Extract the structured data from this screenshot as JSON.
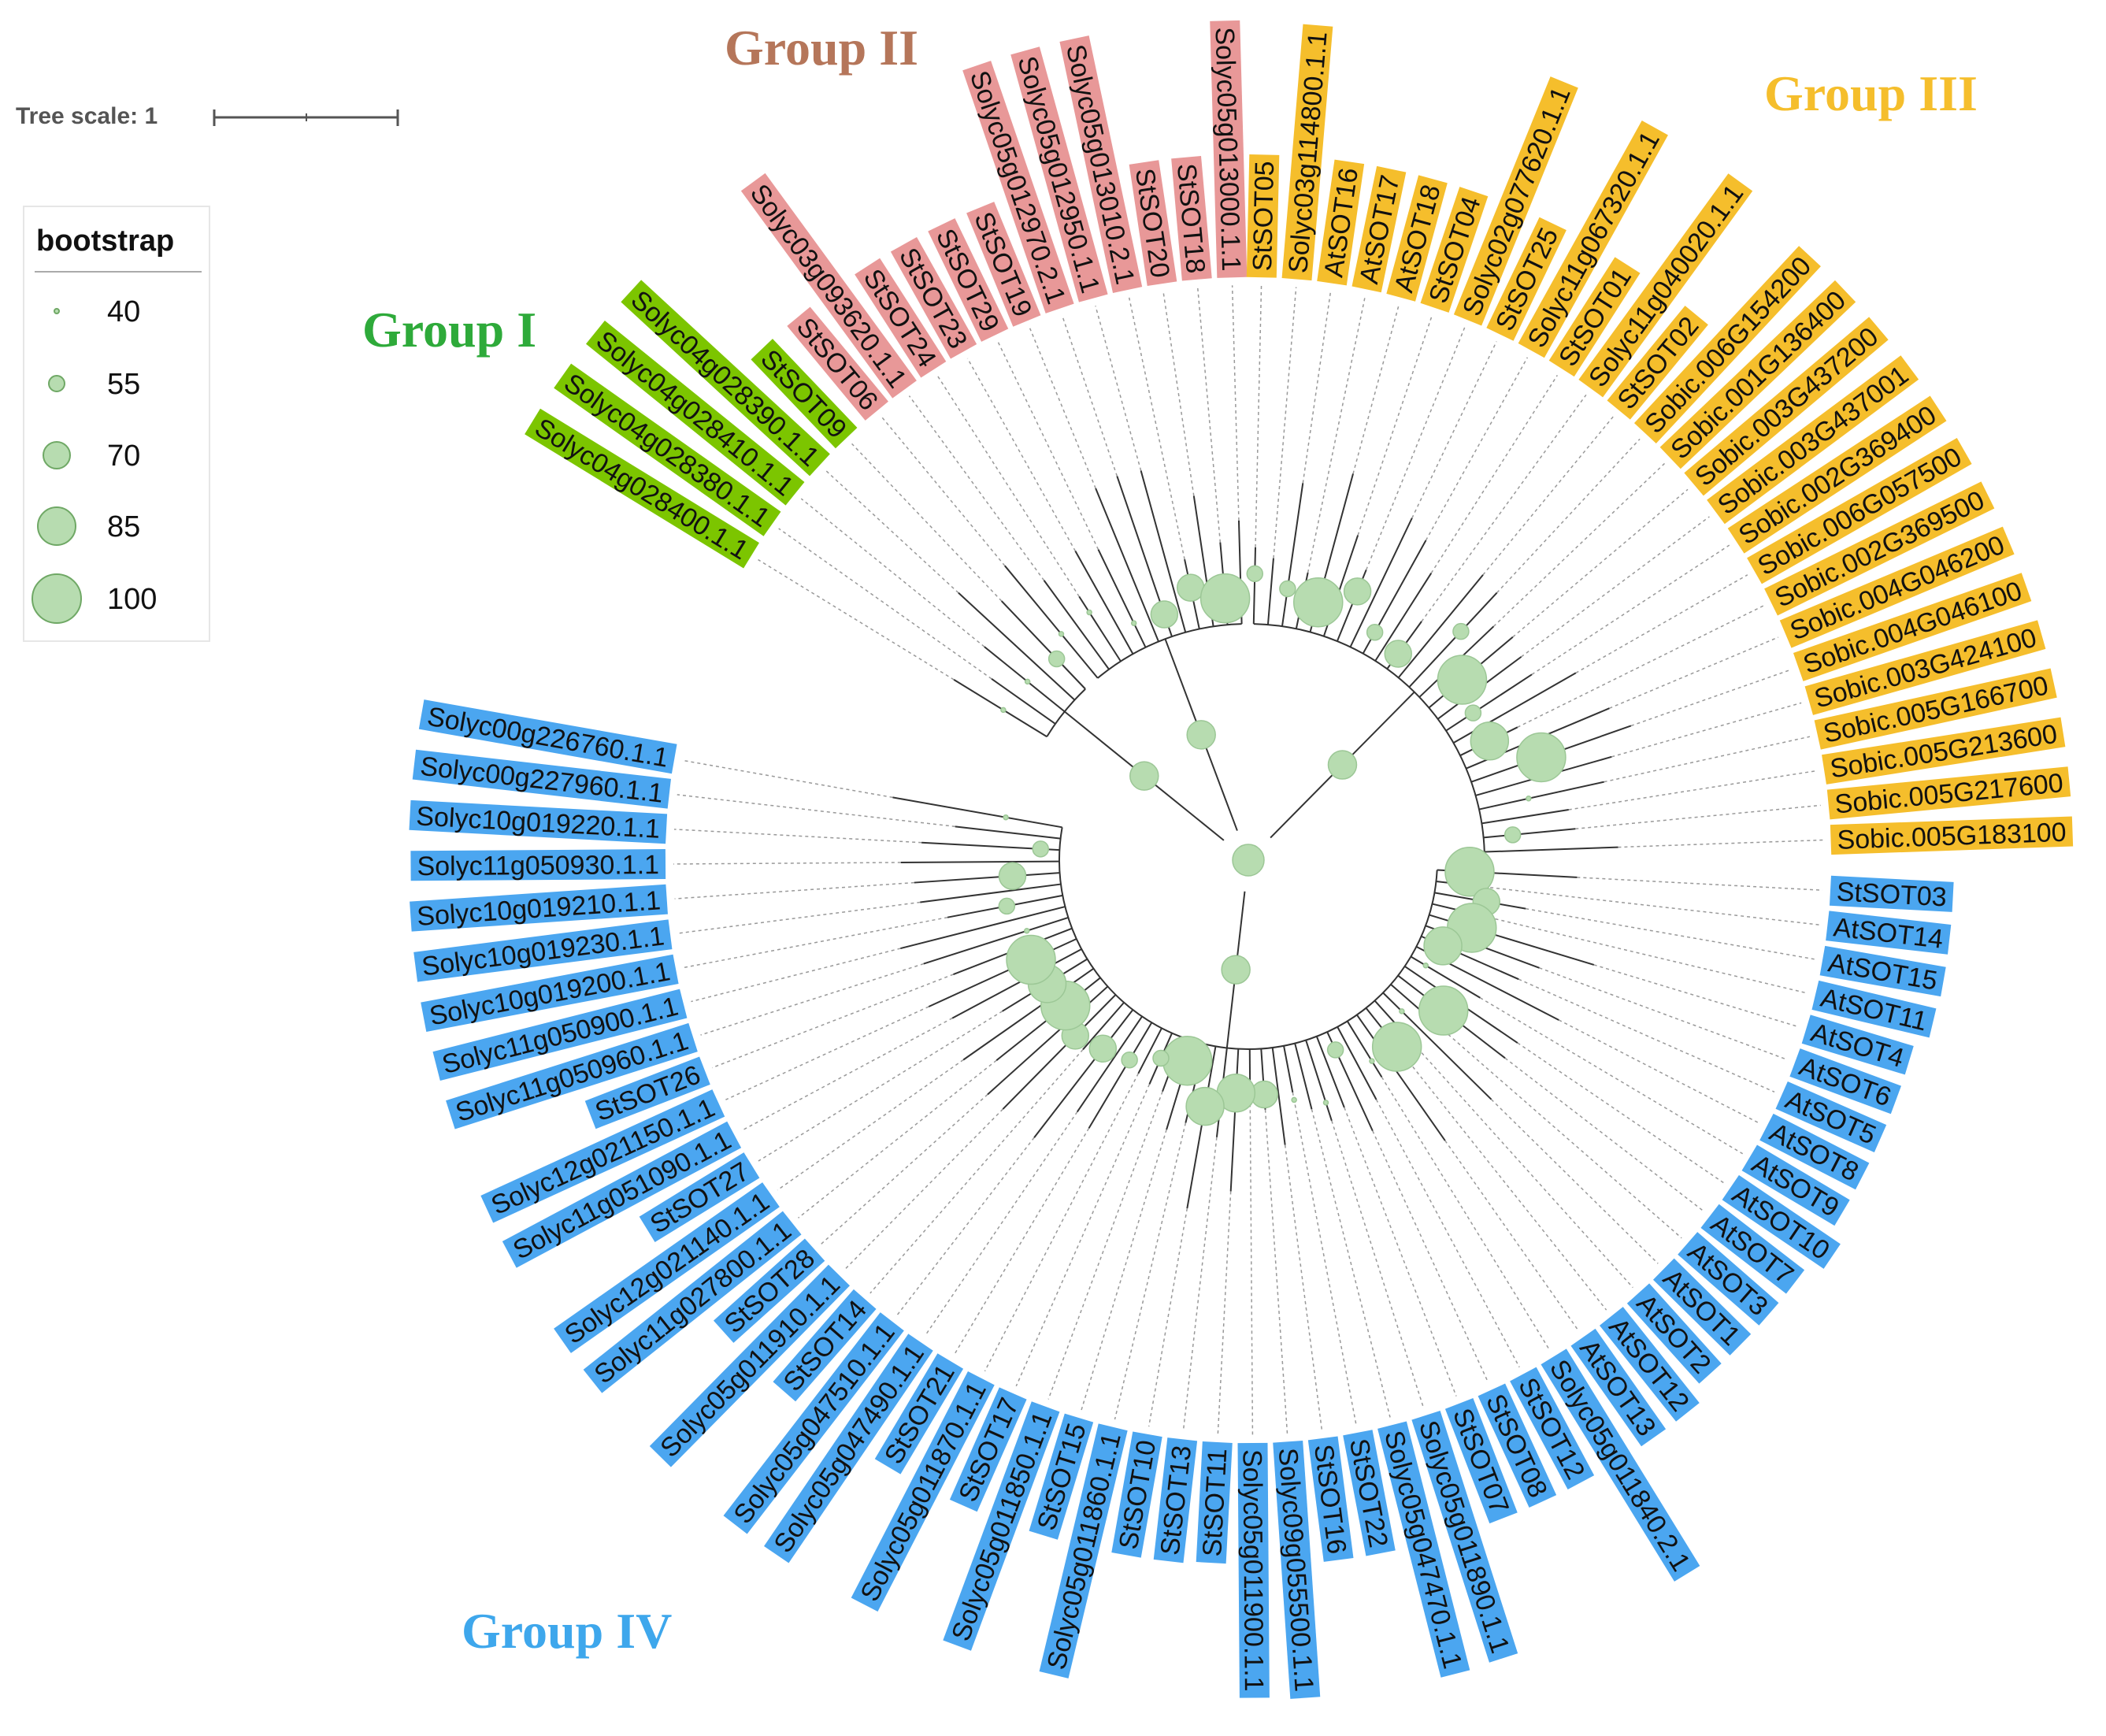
{
  "tree_scale": {
    "label": "Tree scale: 1"
  },
  "legend": {
    "title": "bootstrap",
    "items": [
      {
        "value": 40
      },
      {
        "value": 55
      },
      {
        "value": 70
      },
      {
        "value": 85
      },
      {
        "value": 100
      }
    ]
  },
  "colors": {
    "group_I": "#7cc500",
    "group_II": "#e89898",
    "group_III": "#f5be2c",
    "group_IV": "#4ba6f0",
    "node": "#b7dcb0",
    "node_stroke": "#9cc796",
    "branch": "#333333",
    "guide": "#999999"
  },
  "groups": [
    {
      "id": "I",
      "title": "Group I",
      "title_color": "#2eaa3a",
      "color_key": "group_I",
      "leaves": [
        "Solyc04g028400.1.1",
        "Solyc04g028380.1.1",
        "Solyc04g028410.1.1",
        "Solyc04g028390.1.1",
        "StSOT09"
      ]
    },
    {
      "id": "II",
      "title": "Group II",
      "title_color": "#b5765a",
      "color_key": "group_II",
      "leaves": [
        "StSOT06",
        "Solyc03g093620.1.1",
        "StSOT24",
        "StSOT23",
        "StSOT29",
        "StSOT19",
        "Solyc05g012970.2.1",
        "Solyc05g012950.1.1",
        "Solyc05g013010.2.1",
        "StSOT20",
        "StSOT18",
        "Solyc05g013000.1.1"
      ]
    },
    {
      "id": "III",
      "title": "Group III",
      "title_color": "#f5be2c",
      "color_key": "group_III",
      "leaves": [
        "StSOT05",
        "Solyc03g114800.1.1",
        "AtSOT16",
        "AtSOT17",
        "AtSOT18",
        "StSOT04",
        "Solyc02g077620.1.1",
        "StSOT25",
        "Solyc11g067320.1.1",
        "StSOT01",
        "Solyc11g040020.1.1",
        "StSOT02",
        "Sobic.006G154200",
        "Sobic.001G136400",
        "Sobic.003G437200",
        "Sobic.003G437001",
        "Sobic.002G369400",
        "Sobic.006G057500",
        "Sobic.002G369500",
        "Sobic.004G046200",
        "Sobic.004G046100",
        "Sobic.003G424100",
        "Sobic.005G166700",
        "Sobic.005G213600",
        "Sobic.005G217600",
        "Sobic.005G183100"
      ]
    },
    {
      "id": "IV",
      "title": "Group IV",
      "title_color": "#3ea7ec",
      "color_key": "group_IV",
      "leaves": [
        "StSOT03",
        "AtSOT14",
        "AtSOT15",
        "AtSOT11",
        "AtSOT4",
        "AtSOT6",
        "AtSOT5",
        "AtSOT8",
        "AtSOT9",
        "AtSOT10",
        "AtSOT7",
        "AtSOT3",
        "AtSOT1",
        "AtSOT2",
        "AtSOT12",
        "AtSOT13",
        "Solyc05g011840.2.1",
        "StSOT12",
        "StSOT08",
        "StSOT07",
        "Solyc05g011890.1.1",
        "Solyc05g047470.1.1",
        "StSOT22",
        "StSOT16",
        "Solyc09g055500.1.1",
        "Solyc05g011900.1.1",
        "StSOT11",
        "StSOT13",
        "StSOT10",
        "Solyc05g011860.1.1",
        "StSOT15",
        "Solyc05g011850.1.1",
        "StSOT17",
        "Solyc05g011870.1.1",
        "StSOT21",
        "Solyc05g047490.1.1",
        "Solyc05g047510.1.1",
        "StSOT14",
        "Solyc05g011910.1.1",
        "StSOT28",
        "Solyc11g027800.1.1",
        "Solyc12g021140.1.1",
        "StSOT27",
        "Solyc11g051090.1.1",
        "Solyc12g021150.1.1",
        "StSOT26",
        "Solyc11g050960.1.1",
        "Solyc11g050900.1.1",
        "Solyc10g019200.1.1",
        "Solyc10g019230.1.1",
        "Solyc10g019210.1.1",
        "Solyc11g050930.1.1",
        "Solyc10g019220.1.1",
        "Solyc00g227960.1.1",
        "Solyc00g226760.1.1"
      ]
    }
  ]
}
